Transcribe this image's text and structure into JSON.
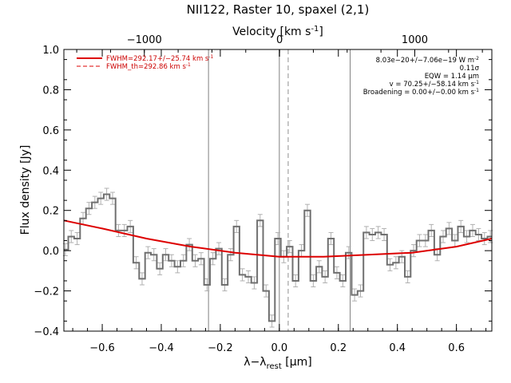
{
  "chart_data": {
    "type": "line",
    "title": "NII122, Raster 10, spaxel (2,1)",
    "xlabel": "λ−λ",
    "xlabel_sub": "rest",
    "xlabel_unit": " [μm]",
    "ylabel": "Flux density [Jy]",
    "top_axis_label": "Velocity [km s",
    "top_axis_sup": "-1",
    "top_axis_close": "]",
    "xlim": [
      -0.73,
      0.72
    ],
    "ylim": [
      -0.4,
      1.0
    ],
    "top_xlim": [
      -1595,
      1570
    ],
    "xticks": [
      -0.6,
      -0.4,
      -0.2,
      0.0,
      0.2,
      0.4,
      0.6
    ],
    "xtick_labels": [
      "−0.6",
      "−0.4",
      "−0.2",
      "0.0",
      "0.2",
      "0.4",
      "0.6"
    ],
    "yticks": [
      -0.4,
      -0.2,
      0.0,
      0.2,
      0.4,
      0.6,
      0.8,
      1.0
    ],
    "ytick_labels": [
      "−0.4",
      "−0.2",
      "0.0",
      "0.2",
      "0.4",
      "0.6",
      "0.8",
      "1.0"
    ],
    "top_ticks": [
      -1000,
      0,
      1000
    ],
    "top_tick_labels": [
      "−1000",
      "0",
      "1000"
    ],
    "vertical_lines": [
      -0.24,
      0.0,
      0.24
    ],
    "dashed_line": 0.03,
    "grid": false,
    "legend_position": "top-left",
    "legend": [
      {
        "label": "FWHM=292.17+/−25.74 km s",
        "sup": "-1",
        "style": "solid"
      },
      {
        "label": "FWHM_th=292.86 km s",
        "sup": "-1",
        "style": "dashed"
      }
    ],
    "annotations": [
      {
        "text": "8.03e−20+/−7.06e−19 W m",
        "sup": "-2"
      },
      {
        "text": "0.11σ",
        "sup": ""
      },
      {
        "text": "EQW = 1.14 μm",
        "sup": ""
      },
      {
        "text": "v = 70.25+/−58.14 km s",
        "sup": "-1"
      },
      {
        "text": "Broadening = 0.00+/−0.00 km s",
        "sup": "-1"
      }
    ],
    "series": [
      {
        "style": "step",
        "x": [
          -0.725,
          -0.705,
          -0.685,
          -0.665,
          -0.645,
          -0.625,
          -0.605,
          -0.585,
          -0.565,
          -0.545,
          -0.525,
          -0.505,
          -0.485,
          -0.465,
          -0.445,
          -0.425,
          -0.405,
          -0.385,
          -0.365,
          -0.345,
          -0.325,
          -0.305,
          -0.285,
          -0.265,
          -0.245,
          -0.225,
          -0.205,
          -0.185,
          -0.165,
          -0.145,
          -0.125,
          -0.105,
          -0.085,
          -0.065,
          -0.045,
          -0.025,
          -0.005,
          0.015,
          0.035,
          0.055,
          0.075,
          0.095,
          0.115,
          0.135,
          0.155,
          0.175,
          0.195,
          0.215,
          0.235,
          0.255,
          0.275,
          0.295,
          0.315,
          0.335,
          0.355,
          0.375,
          0.395,
          0.415,
          0.435,
          0.455,
          0.475,
          0.495,
          0.515,
          0.535,
          0.555,
          0.575,
          0.595,
          0.615,
          0.635,
          0.655,
          0.675,
          0.695,
          0.715
        ],
        "y": [
          0.005,
          0.07,
          0.06,
          0.16,
          0.21,
          0.24,
          0.26,
          0.28,
          0.26,
          0.1,
          0.1,
          0.12,
          -0.06,
          -0.14,
          -0.01,
          -0.02,
          -0.09,
          -0.02,
          -0.05,
          -0.08,
          -0.05,
          0.03,
          -0.05,
          -0.04,
          -0.17,
          -0.04,
          0.01,
          -0.17,
          -0.02,
          0.12,
          -0.12,
          -0.13,
          -0.16,
          0.15,
          -0.2,
          -0.35,
          0.06,
          -0.03,
          0.02,
          -0.15,
          0.0,
          0.2,
          -0.15,
          -0.08,
          -0.13,
          0.06,
          -0.11,
          -0.15,
          -0.01,
          -0.22,
          -0.2,
          0.09,
          0.08,
          0.09,
          0.08,
          -0.07,
          -0.06,
          -0.03,
          -0.13,
          0.0,
          0.05,
          0.05,
          0.1,
          -0.02,
          0.07,
          0.11,
          0.05,
          0.12,
          0.07,
          0.1,
          0.08,
          0.06,
          0.07
        ],
        "error": 0.03
      },
      {
        "style": "fit",
        "x": [
          -0.73,
          -0.6,
          -0.45,
          -0.3,
          -0.15,
          0.0,
          0.15,
          0.3,
          0.45,
          0.6,
          0.72
        ],
        "y": [
          0.15,
          0.11,
          0.06,
          0.02,
          -0.01,
          -0.03,
          -0.03,
          -0.02,
          -0.01,
          0.02,
          0.06
        ]
      }
    ]
  }
}
